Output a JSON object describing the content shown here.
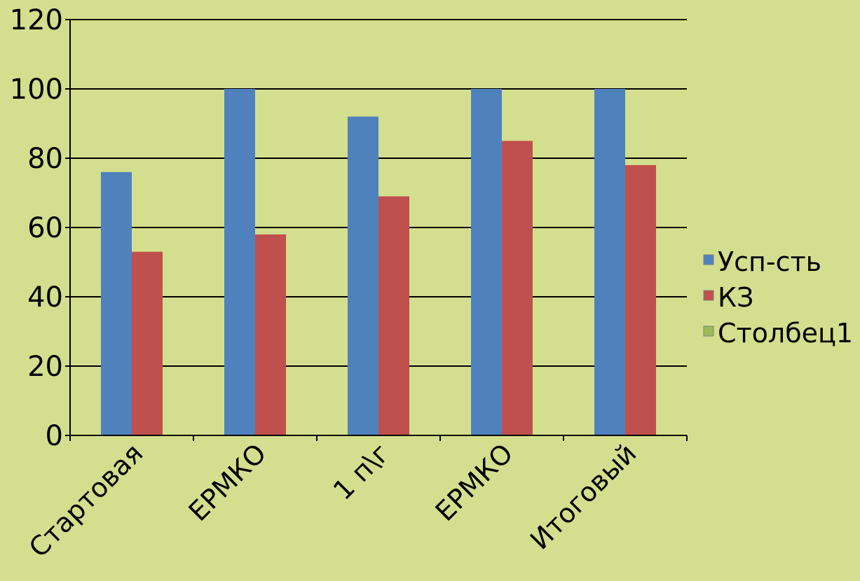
{
  "chart_data": {
    "type": "bar",
    "categories": [
      "Стартовая",
      "ЕРМКО",
      "1 п\\г",
      "ЕРМКО",
      "Итоговый"
    ],
    "series": [
      {
        "name": "Усп-сть",
        "color": "#4f81bd",
        "values": [
          76,
          100,
          92,
          100,
          100
        ]
      },
      {
        "name": "КЗ",
        "color": "#c0504d",
        "values": [
          53,
          58,
          69,
          85,
          78
        ]
      },
      {
        "name": "Столбец1",
        "color": "#9bbb59",
        "values": [
          0,
          0,
          0,
          0,
          0
        ]
      }
    ],
    "ylim": [
      0,
      120
    ],
    "yticks": [
      0,
      20,
      40,
      60,
      80,
      100,
      120
    ],
    "grid": true,
    "legend": "right",
    "title": "",
    "xlabel": "",
    "ylabel": ""
  }
}
